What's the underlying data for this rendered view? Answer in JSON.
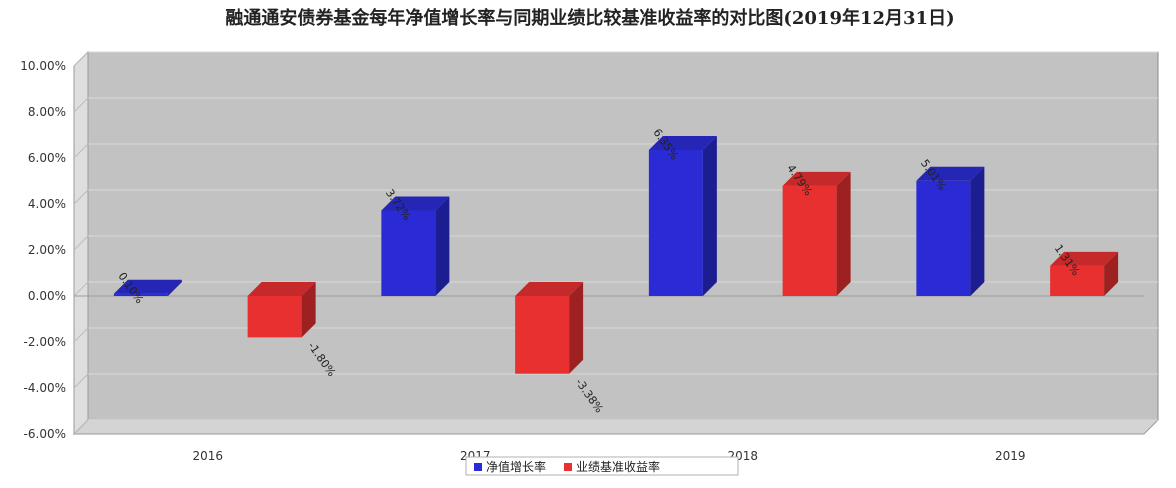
{
  "chart_data": {
    "type": "bar",
    "title": "融通通安债券基金每年净值增长率与同期业绩比较基准收益率的对比图(2019年12月31日)",
    "categories": [
      "2016",
      "2017",
      "2018",
      "2019"
    ],
    "series": [
      {
        "name": "净值增长率",
        "color": "#2b2bd6",
        "values": [
          0.1,
          3.72,
          6.35,
          5.01
        ],
        "labels": [
          "0.10%",
          "3.72%",
          "6.35%",
          "5.01%"
        ]
      },
      {
        "name": "业绩基准收益率",
        "color": "#e83030",
        "values": [
          -1.8,
          -3.38,
          4.79,
          1.31
        ],
        "labels": [
          "-1.80%",
          "-3.38%",
          "4.79%",
          "1.31%"
        ]
      }
    ],
    "ylim": [
      -6,
      10
    ],
    "yticks": [
      10,
      8,
      6,
      4,
      2,
      0,
      -2,
      -4,
      -6
    ],
    "ytick_labels": [
      "10.00%",
      "8.00%",
      "6.00%",
      "4.00%",
      "2.00%",
      "0.00%",
      "-2.00%",
      "-4.00%",
      "-6.00%"
    ],
    "grid": true,
    "style": "3d",
    "legend_position": "bottom"
  }
}
